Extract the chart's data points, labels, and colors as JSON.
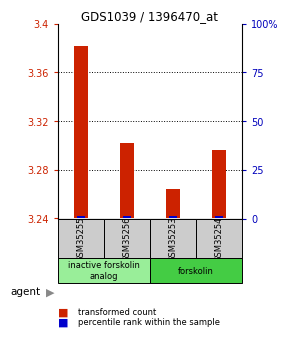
{
  "title": "GDS1039 / 1396470_at",
  "samples": [
    "GSM35255",
    "GSM35256",
    "GSM35253",
    "GSM35254"
  ],
  "red_values": [
    3.382,
    3.302,
    3.264,
    3.296
  ],
  "blue_values": [
    3.242,
    3.242,
    3.242,
    3.242
  ],
  "ylim_left": [
    3.24,
    3.4
  ],
  "ylim_right": [
    0,
    100
  ],
  "yticks_left": [
    3.24,
    3.28,
    3.32,
    3.36,
    3.4
  ],
  "yticks_right": [
    0,
    25,
    50,
    75,
    100
  ],
  "ytick_labels_left": [
    "3.24",
    "3.28",
    "3.32",
    "3.36",
    "3.4"
  ],
  "ytick_labels_right": [
    "0",
    "25",
    "50",
    "75",
    "100%"
  ],
  "groups": [
    {
      "label": "inactive forskolin\nanalog",
      "color": "#99ee99",
      "span": [
        0,
        1
      ]
    },
    {
      "label": "forskolin",
      "color": "#44cc44",
      "span": [
        2,
        3
      ]
    }
  ],
  "red_color": "#cc2200",
  "blue_color": "#0000cc",
  "left_tick_color": "#cc2200",
  "right_tick_color": "#0000bb",
  "sample_box_color": "#cccccc",
  "agent_label": "agent",
  "legend_red": "transformed count",
  "legend_blue": "percentile rank within the sample"
}
